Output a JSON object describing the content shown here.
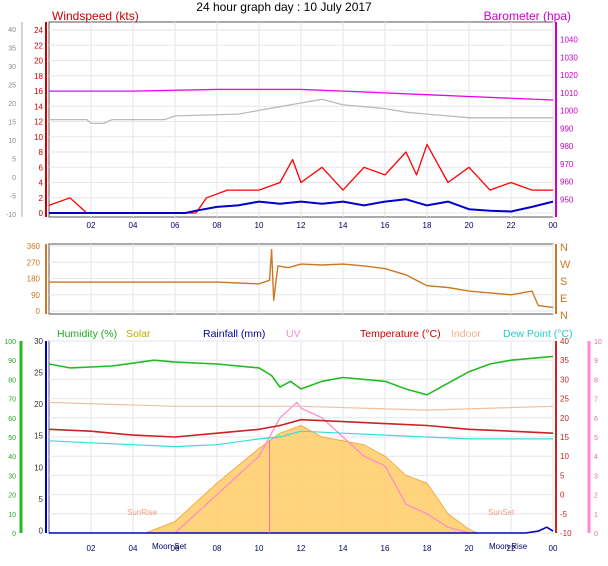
{
  "page": {
    "title": "24 hour graph day : 10 July 2017"
  },
  "colors": {
    "wind": "#ff0000",
    "gust": "#ff0000",
    "avg": "#0000cc",
    "baro": "#ee00ee",
    "baro_trace": "#bbbbbb",
    "wind_dir": "#cc7722",
    "humidity": "#22bb22",
    "solar": "#ffcc66",
    "rain": "#0000cc",
    "uv": "#ff88cc",
    "temperature": "#cc2222",
    "indoor": "#f2c0a0",
    "dew_point": "#33dddd",
    "grid": "#e6e6ee",
    "frame": "#555555"
  },
  "chart_data": [
    {
      "type": "line",
      "name": "wind-baro",
      "title": "24 hour graph day : 10 July 2017",
      "left_axis_label": "Windspeed (kts)",
      "right_axis_label": "Barometer (hpa)",
      "x_ticks": [
        "02",
        "04",
        "06",
        "08",
        "10",
        "12",
        "14",
        "16",
        "18",
        "20",
        "22",
        "00"
      ],
      "x_range": [
        0,
        24
      ],
      "y_left_ticks": [
        "24",
        "22",
        "20",
        "18",
        "16",
        "14",
        "12",
        "10",
        "8",
        "6",
        "4",
        "2",
        "0"
      ],
      "y_left_range": [
        0,
        24
      ],
      "y_outer_ticks": [
        "40",
        "35",
        "30",
        "25",
        "20",
        "15",
        "10",
        "5",
        "0",
        "-5",
        "-10"
      ],
      "y_right_ticks": [
        "1040",
        "1030",
        "1020",
        "1010",
        "1000",
        "990",
        "980",
        "970",
        "960",
        "950"
      ],
      "y_right_range": [
        940,
        1050
      ],
      "series": [
        {
          "key": "baro_trace",
          "axis": "outer",
          "points": [
            [
              0,
              15.5
            ],
            [
              1.8,
              15.5
            ],
            [
              2.0,
              14.5
            ],
            [
              2.6,
              14.5
            ],
            [
              3.0,
              15.5
            ],
            [
              5.5,
              15.5
            ],
            [
              6.0,
              16.5
            ],
            [
              9.0,
              17
            ],
            [
              10.0,
              18
            ],
            [
              11.0,
              19
            ],
            [
              12.0,
              20
            ],
            [
              13.0,
              21
            ],
            [
              14.0,
              19.5
            ],
            [
              15.0,
              19
            ],
            [
              16.0,
              18.5
            ],
            [
              17.0,
              17.5
            ],
            [
              18.0,
              17
            ],
            [
              19.0,
              16.5
            ],
            [
              20.0,
              16
            ],
            [
              24.0,
              16
            ]
          ]
        },
        {
          "key": "baro",
          "axis": "right",
          "points": [
            [
              0,
              1011
            ],
            [
              4,
              1011
            ],
            [
              8,
              1012
            ],
            [
              12,
              1012
            ],
            [
              14,
              1011
            ],
            [
              18,
              1009
            ],
            [
              20,
              1008
            ],
            [
              24,
              1006
            ]
          ]
        },
        {
          "key": "gust",
          "axis": "left",
          "points": [
            [
              0,
              1
            ],
            [
              1.0,
              2
            ],
            [
              1.8,
              0
            ],
            [
              7.0,
              0
            ],
            [
              7.5,
              2
            ],
            [
              8.5,
              3
            ],
            [
              10.0,
              3
            ],
            [
              11.0,
              4
            ],
            [
              11.6,
              7
            ],
            [
              12.0,
              4
            ],
            [
              13.0,
              6
            ],
            [
              14.0,
              3
            ],
            [
              15.0,
              6
            ],
            [
              16.0,
              5
            ],
            [
              17.0,
              8
            ],
            [
              17.5,
              5
            ],
            [
              18.0,
              9
            ],
            [
              19.0,
              4
            ],
            [
              20.0,
              6
            ],
            [
              21.0,
              3
            ],
            [
              22.0,
              4
            ],
            [
              23.0,
              3
            ],
            [
              24.0,
              3
            ]
          ]
        },
        {
          "key": "avg",
          "axis": "left",
          "points": [
            [
              0,
              0
            ],
            [
              6.5,
              0
            ],
            [
              7.0,
              0.3
            ],
            [
              8.0,
              0.8
            ],
            [
              9.0,
              1.0
            ],
            [
              10.0,
              1.5
            ],
            [
              11.0,
              1.2
            ],
            [
              12.0,
              1.5
            ],
            [
              13.0,
              1.2
            ],
            [
              14.0,
              1.5
            ],
            [
              15.0,
              1.0
            ],
            [
              16.0,
              1.5
            ],
            [
              17.0,
              1.8
            ],
            [
              18.0,
              1.0
            ],
            [
              19.0,
              1.5
            ],
            [
              20.0,
              0.5
            ],
            [
              21.0,
              0.3
            ],
            [
              22.0,
              0.2
            ],
            [
              23.0,
              0.8
            ],
            [
              24.0,
              1.5
            ]
          ]
        }
      ]
    },
    {
      "type": "line",
      "name": "wind-direction",
      "x_range": [
        0,
        24
      ],
      "y_ticks": [
        "360",
        "270",
        "180",
        "90",
        "0"
      ],
      "y_range": [
        0,
        360
      ],
      "compass_labels": [
        "N",
        "W",
        "S",
        "E",
        "N"
      ],
      "series": [
        {
          "key": "wind_dir",
          "points": [
            [
              0,
              160
            ],
            [
              4,
              160
            ],
            [
              8,
              160
            ],
            [
              9.0,
              155
            ],
            [
              10.0,
              150
            ],
            [
              10.5,
              170
            ],
            [
              10.6,
              340
            ],
            [
              10.7,
              60
            ],
            [
              10.9,
              250
            ],
            [
              11.4,
              240
            ],
            [
              12.0,
              260
            ],
            [
              13.0,
              255
            ],
            [
              14.0,
              260
            ],
            [
              15.0,
              250
            ],
            [
              16.0,
              235
            ],
            [
              17.0,
              200
            ],
            [
              18.0,
              140
            ],
            [
              19.0,
              130
            ],
            [
              20.0,
              110
            ],
            [
              21.0,
              100
            ],
            [
              22.0,
              90
            ],
            [
              23.0,
              110
            ],
            [
              23.3,
              30
            ],
            [
              24.0,
              20
            ]
          ]
        }
      ]
    },
    {
      "type": "line",
      "name": "temp-humidity-solar",
      "legend": [
        "Humidity (%)",
        "Solar",
        "Rainfall (mm)",
        "UV",
        "Temperature (°C)",
        "Indoor",
        "Dew Point (°C)"
      ],
      "x_ticks": [
        "02",
        "04",
        "06",
        "08",
        "10",
        "12",
        "14",
        "16",
        "18",
        "20",
        "22",
        "00"
      ],
      "x_range": [
        0,
        24
      ],
      "y_humidity_ticks": [
        "100",
        "90",
        "80",
        "70",
        "60",
        "50",
        "40",
        "30",
        "20",
        "10",
        "0"
      ],
      "y_humidity_range": [
        0,
        100
      ],
      "y_main_ticks": [
        "30",
        "25",
        "20",
        "15",
        "10",
        "5",
        "0"
      ],
      "y_temp_ticks": [
        "40",
        "35",
        "30",
        "25",
        "20",
        "15",
        "10",
        "5",
        "0",
        "-5",
        "-10"
      ],
      "y_temp_range": [
        -10,
        40
      ],
      "y_uv_ticks": [
        "10",
        "9",
        "8",
        "7",
        "6",
        "5",
        "4",
        "3",
        "2",
        "1",
        "0"
      ],
      "y_uv_range": [
        0,
        10
      ],
      "annotations": [
        "SunRise",
        "SunSet",
        "Moon Set",
        "Moon Rise"
      ],
      "series": [
        {
          "key": "solar",
          "axis": "temp",
          "fill": true,
          "points": [
            [
              4.6,
              -10
            ],
            [
              6.0,
              -7
            ],
            [
              8.0,
              3
            ],
            [
              10.0,
              12
            ],
            [
              11.0,
              16
            ],
            [
              12.0,
              18
            ],
            [
              13.0,
              15
            ],
            [
              14.0,
              14
            ],
            [
              15.0,
              13
            ],
            [
              16.0,
              10
            ],
            [
              17.0,
              5
            ],
            [
              18.0,
              3
            ],
            [
              19.0,
              -5
            ],
            [
              20.0,
              -9
            ],
            [
              20.4,
              -10
            ]
          ]
        },
        {
          "key": "uv",
          "axis": "uv",
          "points": [
            [
              6.0,
              0
            ],
            [
              8.0,
              2
            ],
            [
              10.0,
              4
            ],
            [
              11.0,
              6
            ],
            [
              11.8,
              6.8
            ],
            [
              12.0,
              6.5
            ],
            [
              13.0,
              6.0
            ],
            [
              14.0,
              5.0
            ],
            [
              15.0,
              4.0
            ],
            [
              16.0,
              3.5
            ],
            [
              17.0,
              1.5
            ],
            [
              18.0,
              1.0
            ],
            [
              19.0,
              0.3
            ],
            [
              20.0,
              0
            ]
          ]
        },
        {
          "key": "humidity",
          "axis": "humidity",
          "points": [
            [
              0,
              88
            ],
            [
              1,
              86
            ],
            [
              3,
              87
            ],
            [
              5,
              90
            ],
            [
              6,
              89
            ],
            [
              8,
              88
            ],
            [
              10,
              86
            ],
            [
              10.6,
              82
            ],
            [
              11.0,
              76
            ],
            [
              11.5,
              79
            ],
            [
              12.0,
              75
            ],
            [
              13.0,
              79
            ],
            [
              14.0,
              81
            ],
            [
              16.0,
              79
            ],
            [
              17.0,
              75
            ],
            [
              18.0,
              72
            ],
            [
              19.0,
              78
            ],
            [
              20.0,
              84
            ],
            [
              21.0,
              88
            ],
            [
              22.0,
              90
            ],
            [
              24.0,
              92
            ]
          ]
        },
        {
          "key": "indoor",
          "axis": "temp",
          "points": [
            [
              0,
              24
            ],
            [
              6,
              23
            ],
            [
              12,
              23
            ],
            [
              18,
              22
            ],
            [
              24,
              23
            ]
          ]
        },
        {
          "key": "temperature",
          "axis": "temp",
          "points": [
            [
              0,
              17
            ],
            [
              2,
              16.5
            ],
            [
              4,
              15.5
            ],
            [
              6,
              15
            ],
            [
              8,
              16
            ],
            [
              10,
              17
            ],
            [
              11,
              18
            ],
            [
              12,
              19.5
            ],
            [
              14,
              19
            ],
            [
              16,
              18.5
            ],
            [
              18,
              18
            ],
            [
              20,
              17
            ],
            [
              22,
              16.5
            ],
            [
              24,
              16
            ]
          ]
        },
        {
          "key": "dew_point",
          "axis": "temp",
          "points": [
            [
              0,
              14
            ],
            [
              2,
              13.5
            ],
            [
              4,
              13
            ],
            [
              6,
              12.5
            ],
            [
              8,
              13
            ],
            [
              10,
              14.5
            ],
            [
              11,
              15
            ],
            [
              12,
              16.5
            ],
            [
              14,
              16
            ],
            [
              16,
              15.5
            ],
            [
              18,
              15
            ],
            [
              20,
              14.5
            ],
            [
              22,
              14.5
            ],
            [
              24,
              14.5
            ]
          ]
        },
        {
          "key": "rain",
          "axis": "temp",
          "points": [
            [
              0,
              -10
            ],
            [
              22.7,
              -10
            ],
            [
              23.3,
              -9.5
            ],
            [
              23.7,
              -8.5
            ],
            [
              24.0,
              -9.5
            ]
          ]
        }
      ]
    }
  ]
}
